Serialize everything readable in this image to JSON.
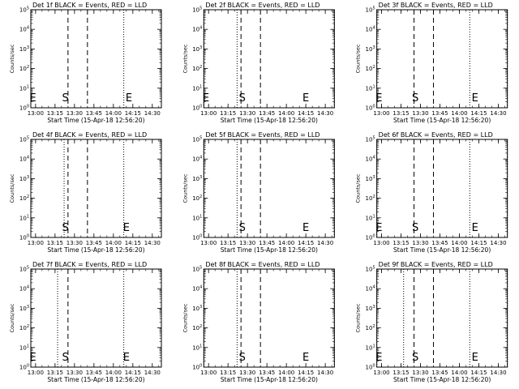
{
  "chart_data": [
    {
      "type": "line",
      "title": "Det 1f BLACK = Events, RED = LLD",
      "xlabel": "Start Time (15-Apr-18 12:56:20)",
      "ylabel": "Counts/sec",
      "x_ticks": [
        "13:00",
        "13:15",
        "13:30",
        "13:45",
        "14:00",
        "14:15",
        "14:30"
      ],
      "y_ticks": [
        "10^0",
        "10^1",
        "10^2",
        "10^3",
        "10^4",
        "10^5"
      ],
      "y_scale": "log",
      "xlim": [
        "12:56:20",
        "14:37"
      ],
      "ylim": [
        1,
        100000
      ],
      "series": [],
      "dotted_lines": [
        "12:56:20",
        "14:08",
        "14:37"
      ],
      "dashed_lines": [
        "13:25",
        "13:40"
      ],
      "markers": [
        {
          "label": "E",
          "x": "12:58"
        },
        {
          "label": "S",
          "x": "13:23"
        },
        {
          "label": "E",
          "x": "14:12"
        }
      ]
    },
    {
      "type": "line",
      "title": "Det 2f BLACK = Events, RED = LLD",
      "xlabel": "Start Time (15-Apr-18 12:56:20)",
      "ylabel": "Counts/sec",
      "x_ticks": [
        "13:00",
        "13:15",
        "13:30",
        "13:45",
        "14:00",
        "14:15",
        "14:30"
      ],
      "y_ticks": [
        "10^0",
        "10^1",
        "10^2",
        "10^3",
        "10^4",
        "10^5"
      ],
      "y_scale": "log",
      "xlim": [
        "12:56:20",
        "14:37"
      ],
      "ylim": [
        1,
        100000
      ],
      "series": [],
      "dotted_lines": [
        "12:56:20",
        "13:22",
        "14:37"
      ],
      "dashed_lines": [
        "13:25",
        "13:40"
      ],
      "markers": [
        {
          "label": "E",
          "x": "12:58"
        },
        {
          "label": "S",
          "x": "13:26"
        },
        {
          "label": "E",
          "x": "14:15"
        }
      ]
    },
    {
      "type": "line",
      "title": "Det 3f BLACK = Events, RED = LLD",
      "xlabel": "Start Time (15-Apr-18 12:56:20)",
      "ylabel": "Counts/sec",
      "x_ticks": [
        "13:00",
        "13:15",
        "13:30",
        "13:45",
        "14:00",
        "14:15",
        "14:30"
      ],
      "y_ticks": [
        "10^0",
        "10^1",
        "10^2",
        "10^3",
        "10^4",
        "10^5"
      ],
      "y_scale": "log",
      "xlim": [
        "12:56:20",
        "14:37"
      ],
      "ylim": [
        1,
        100000
      ],
      "series": [],
      "dotted_lines": [
        "12:56:20",
        "14:08",
        "14:37"
      ],
      "dashed_lines": [
        "13:25",
        "13:40"
      ],
      "markers": [
        {
          "label": "E",
          "x": "12:58"
        },
        {
          "label": "S",
          "x": "13:26"
        },
        {
          "label": "E",
          "x": "14:12"
        }
      ]
    },
    {
      "type": "line",
      "title": "Det 4f BLACK = Events, RED = LLD",
      "xlabel": "Start Time (15-Apr-18 12:56:20)",
      "ylabel": "Counts/sec",
      "x_ticks": [
        "13:00",
        "13:15",
        "13:30",
        "13:45",
        "14:00",
        "14:15",
        "14:30"
      ],
      "y_ticks": [
        "10^0",
        "10^1",
        "10^2",
        "10^3",
        "10^4",
        "10^5"
      ],
      "y_scale": "log",
      "xlim": [
        "12:56:20",
        "14:37"
      ],
      "ylim": [
        1,
        100000
      ],
      "series": [],
      "dotted_lines": [
        "12:56:20",
        "13:22",
        "14:08",
        "14:37"
      ],
      "dashed_lines": [
        "13:25",
        "13:40"
      ],
      "markers": [
        {
          "label": "S",
          "x": "13:23"
        },
        {
          "label": "E",
          "x": "14:10"
        }
      ]
    },
    {
      "type": "line",
      "title": "Det 5f BLACK = Events, RED = LLD",
      "xlabel": "Start Time (15-Apr-18 12:56:20)",
      "ylabel": "Counts/sec",
      "x_ticks": [
        "13:00",
        "13:15",
        "13:30",
        "13:45",
        "14:00",
        "14:15",
        "14:30"
      ],
      "y_ticks": [
        "10^0",
        "10^1",
        "10^2",
        "10^3",
        "10^4",
        "10^5"
      ],
      "y_scale": "log",
      "xlim": [
        "12:56:20",
        "14:37"
      ],
      "ylim": [
        1,
        100000
      ],
      "series": [],
      "dotted_lines": [
        "12:56:20",
        "13:22",
        "14:37"
      ],
      "dashed_lines": [
        "13:25",
        "13:40"
      ],
      "markers": [
        {
          "label": "S",
          "x": "13:26"
        },
        {
          "label": "E",
          "x": "14:15"
        }
      ]
    },
    {
      "type": "line",
      "title": "Det 6f BLACK = Events, RED = LLD",
      "xlabel": "Start Time (15-Apr-18 12:56:20)",
      "ylabel": "Counts/sec",
      "x_ticks": [
        "13:00",
        "13:15",
        "13:30",
        "13:45",
        "14:00",
        "14:15",
        "14:30"
      ],
      "y_ticks": [
        "10^0",
        "10^1",
        "10^2",
        "10^3",
        "10^4",
        "10^5"
      ],
      "y_scale": "log",
      "xlim": [
        "12:56:20",
        "14:37"
      ],
      "ylim": [
        1,
        100000
      ],
      "series": [],
      "dotted_lines": [
        "12:56:20",
        "14:08",
        "14:37"
      ],
      "dashed_lines": [
        "13:25",
        "13:40"
      ],
      "markers": [
        {
          "label": "E",
          "x": "12:58"
        },
        {
          "label": "S",
          "x": "13:26"
        },
        {
          "label": "E",
          "x": "14:12"
        }
      ]
    },
    {
      "type": "line",
      "title": "Det 7f BLACK = Events, RED = LLD",
      "xlabel": "Start Time (15-Apr-18 12:56:20)",
      "ylabel": "Counts/sec",
      "x_ticks": [
        "13:00",
        "13:15",
        "13:30",
        "13:45",
        "14:00",
        "14:15",
        "14:30"
      ],
      "y_ticks": [
        "10^0",
        "10^1",
        "10^2",
        "10^3",
        "10^4",
        "10^5"
      ],
      "y_scale": "log",
      "xlim": [
        "12:56:20",
        "14:37"
      ],
      "ylim": [
        1,
        100000
      ],
      "series": [],
      "dotted_lines": [
        "12:56:20",
        "13:17",
        "14:08",
        "14:37"
      ],
      "dashed_lines": [
        "13:25"
      ],
      "markers": [
        {
          "label": "E",
          "x": "12:58"
        },
        {
          "label": "S",
          "x": "13:23"
        },
        {
          "label": "E",
          "x": "14:10"
        }
      ]
    },
    {
      "type": "line",
      "title": "Det 8f BLACK = Events, RED = LLD",
      "xlabel": "Start Time (15-Apr-18 12:56:20)",
      "ylabel": "Counts/sec",
      "x_ticks": [
        "13:00",
        "13:15",
        "13:30",
        "13:45",
        "14:00",
        "14:15",
        "14:30"
      ],
      "y_ticks": [
        "10^0",
        "10^1",
        "10^2",
        "10^3",
        "10^4",
        "10^5"
      ],
      "y_scale": "log",
      "xlim": [
        "12:56:20",
        "14:37"
      ],
      "ylim": [
        1,
        100000
      ],
      "series": [],
      "dotted_lines": [
        "12:56:20",
        "13:22",
        "14:37"
      ],
      "dashed_lines": [
        "13:25",
        "13:40"
      ],
      "markers": [
        {
          "label": "S",
          "x": "13:26"
        },
        {
          "label": "E",
          "x": "14:15"
        }
      ]
    },
    {
      "type": "line",
      "title": "Det 9f BLACK = Events, RED = LLD",
      "xlabel": "Start Time (15-Apr-18 12:56:20)",
      "ylabel": "Counts/sec",
      "x_ticks": [
        "13:00",
        "13:15",
        "13:30",
        "13:45",
        "14:00",
        "14:15",
        "14:30"
      ],
      "y_ticks": [
        "10^0",
        "10^1",
        "10^2",
        "10^3",
        "10^4",
        "10^5"
      ],
      "y_scale": "log",
      "xlim": [
        "12:56:20",
        "14:37"
      ],
      "ylim": [
        1,
        100000
      ],
      "series": [],
      "dotted_lines": [
        "12:56:20",
        "13:17",
        "14:08",
        "14:37"
      ],
      "dashed_lines": [
        "13:25",
        "13:40"
      ],
      "markers": [
        {
          "label": "E",
          "x": "12:58"
        },
        {
          "label": "S",
          "x": "13:26"
        },
        {
          "label": "E",
          "x": "14:12"
        }
      ]
    }
  ]
}
